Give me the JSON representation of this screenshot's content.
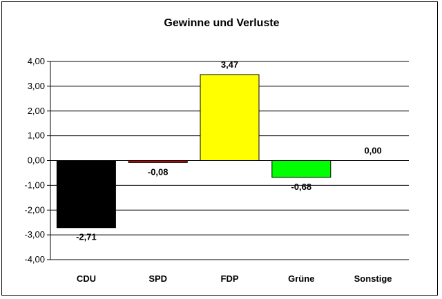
{
  "chart_data": {
    "type": "bar",
    "title": "Gewinne und Verluste",
    "categories": [
      "CDU",
      "SPD",
      "FDP",
      "Grüne",
      "Sonstige"
    ],
    "values": [
      -2.71,
      -0.08,
      3.47,
      -0.68,
      0.0
    ],
    "value_labels": [
      "-2,71",
      "-0,08",
      "3,47",
      "-0,68",
      "0,00"
    ],
    "colors": [
      "#000000",
      "#cc0000",
      "#ffff00",
      "#00ff00",
      "#ffffff"
    ],
    "ylim": [
      -4,
      4
    ],
    "yticks": [
      4,
      3,
      2,
      1,
      0,
      -1,
      -2,
      -3,
      -4
    ],
    "ytick_labels": [
      "4,00",
      "3,00",
      "2,00",
      "1,00",
      "0,00",
      "-1,00",
      "-2,00",
      "-3,00",
      "-4,00"
    ],
    "xlabel": "",
    "ylabel": "",
    "grid": true,
    "legend": "none"
  }
}
